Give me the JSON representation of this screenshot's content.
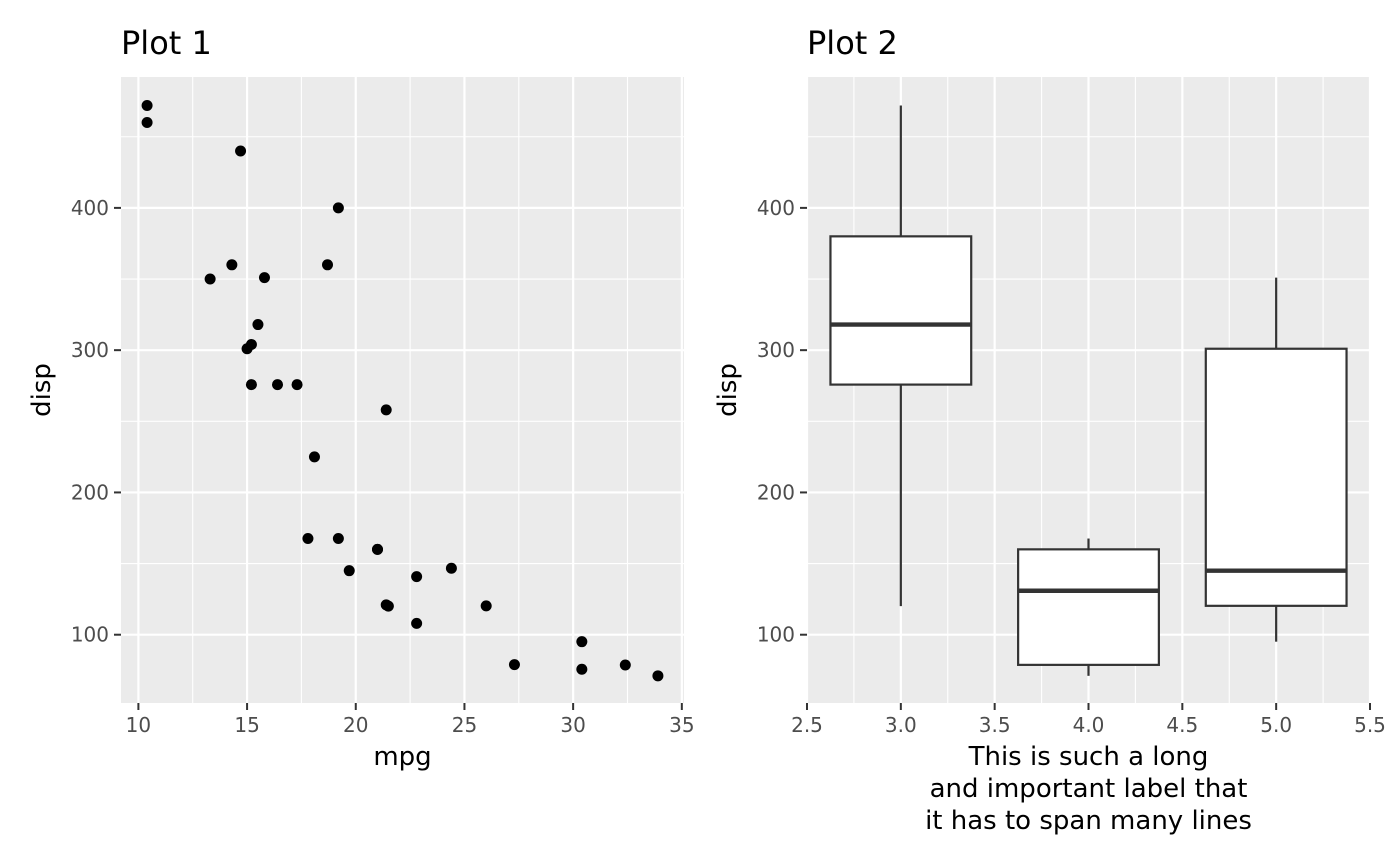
{
  "chart_data": [
    {
      "type": "scatter",
      "title": "Plot 1",
      "xlabel": "mpg",
      "ylabel": "disp",
      "xlim": [
        9.2,
        35.1
      ],
      "ylim": [
        52,
        492
      ],
      "x_ticks": [
        10,
        15,
        20,
        25,
        30,
        35
      ],
      "y_ticks": [
        100,
        200,
        300,
        400
      ],
      "grid": true,
      "points": [
        {
          "x": 21.0,
          "y": 160
        },
        {
          "x": 21.0,
          "y": 160
        },
        {
          "x": 22.8,
          "y": 108
        },
        {
          "x": 21.4,
          "y": 258
        },
        {
          "x": 18.7,
          "y": 360
        },
        {
          "x": 18.1,
          "y": 225
        },
        {
          "x": 14.3,
          "y": 360
        },
        {
          "x": 24.4,
          "y": 146.7
        },
        {
          "x": 22.8,
          "y": 140.8
        },
        {
          "x": 19.2,
          "y": 167.6
        },
        {
          "x": 17.8,
          "y": 167.6
        },
        {
          "x": 16.4,
          "y": 275.8
        },
        {
          "x": 17.3,
          "y": 275.8
        },
        {
          "x": 15.2,
          "y": 275.8
        },
        {
          "x": 10.4,
          "y": 472
        },
        {
          "x": 10.4,
          "y": 460
        },
        {
          "x": 14.7,
          "y": 440
        },
        {
          "x": 32.4,
          "y": 78.7
        },
        {
          "x": 30.4,
          "y": 75.7
        },
        {
          "x": 33.9,
          "y": 71.1
        },
        {
          "x": 21.5,
          "y": 120.1
        },
        {
          "x": 15.5,
          "y": 318
        },
        {
          "x": 15.2,
          "y": 304
        },
        {
          "x": 13.3,
          "y": 350
        },
        {
          "x": 19.2,
          "y": 400
        },
        {
          "x": 27.3,
          "y": 79
        },
        {
          "x": 26.0,
          "y": 120.3
        },
        {
          "x": 30.4,
          "y": 95.1
        },
        {
          "x": 15.8,
          "y": 351
        },
        {
          "x": 19.7,
          "y": 145
        },
        {
          "x": 15.0,
          "y": 301
        },
        {
          "x": 21.4,
          "y": 121
        }
      ]
    },
    {
      "type": "boxplot",
      "title": "Plot 2",
      "xlabel": "This is such a long\nand important label that\nit has to span many lines",
      "ylabel": "disp",
      "xlim": [
        2.5,
        5.5
      ],
      "ylim": [
        52,
        492
      ],
      "x_ticks": [
        "2.5",
        "3.0",
        "3.5",
        "4.0",
        "4.5",
        "5.0",
        "5.5"
      ],
      "y_ticks": [
        100,
        200,
        300,
        400
      ],
      "grid": true,
      "boxes": [
        {
          "x": 3,
          "min": 120.1,
          "q1": 275.8,
          "median": 318,
          "q3": 380,
          "max": 472
        },
        {
          "x": 4,
          "min": 71.1,
          "q1": 78.8,
          "median": 130.9,
          "q3": 160,
          "max": 167.6
        },
        {
          "x": 5,
          "min": 95.1,
          "q1": 120.3,
          "median": 145,
          "q3": 301,
          "max": 351
        }
      ]
    }
  ]
}
